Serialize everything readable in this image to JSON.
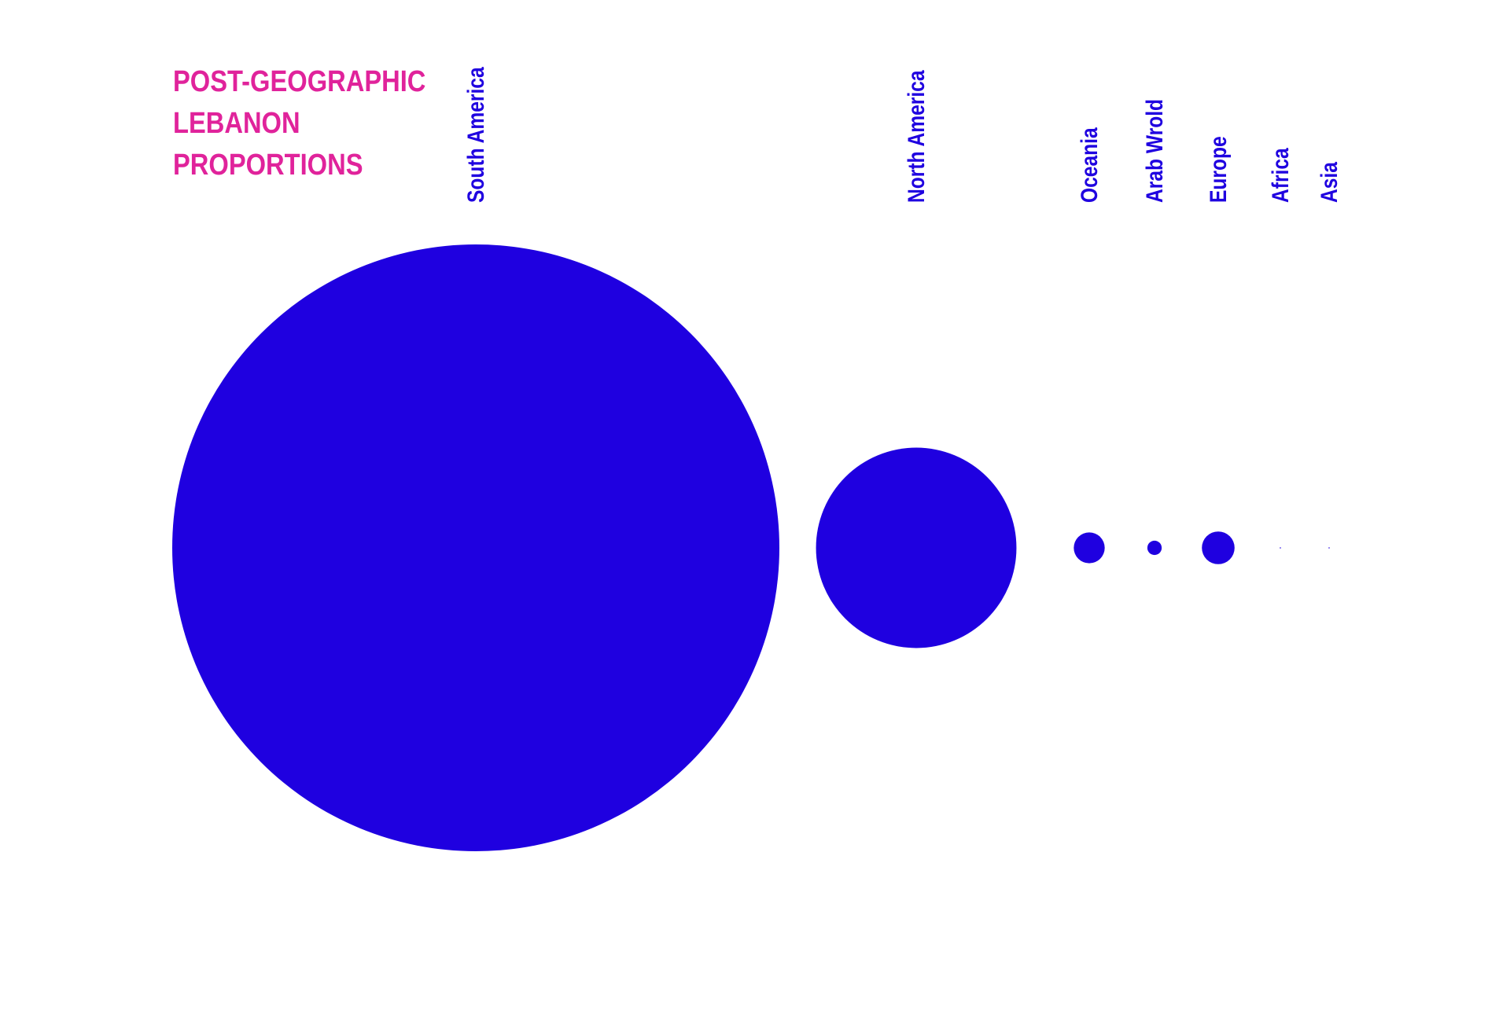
{
  "title_lines": [
    "POST-GEOGRAPHIC",
    "LEBANON",
    "PROPORTIONS"
  ],
  "colors": {
    "title": "#e0239b",
    "mark": "#1f00e0",
    "background": "#ffffff"
  },
  "chart_data": {
    "type": "bubble",
    "title": "POST-GEOGRAPHIC LEBANON PROPORTIONS",
    "categories": [
      "South America",
      "North America",
      "Oceania",
      "Arab Wrold",
      "Europe",
      "Africa",
      "Asia"
    ],
    "values": [
      100,
      10.9,
      0.26,
      0.056,
      0.29,
      0.0003,
      0.0001
    ],
    "value_encoding": "circle area (relative, South America = 100)",
    "xlabel": "",
    "ylabel": "",
    "grid": false,
    "legend": "none"
  }
}
